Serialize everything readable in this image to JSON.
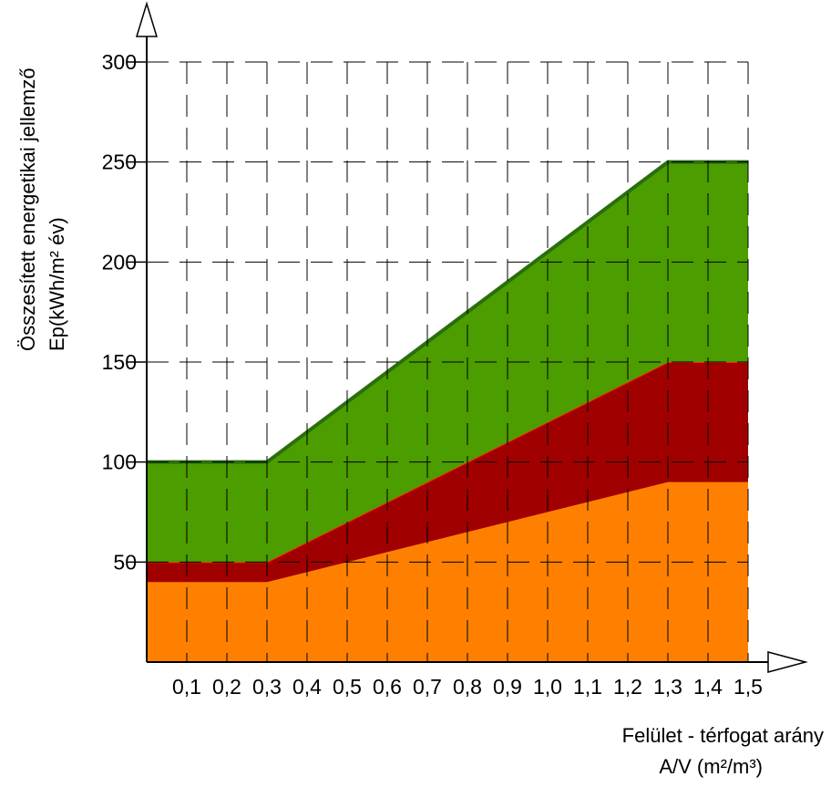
{
  "chart_data": {
    "type": "area",
    "ylabel_lines": [
      "Összesített energetikai jellemző",
      "Ep(kWh/m² év)"
    ],
    "xlabel_lines": [
      "Felület - térfogat arány",
      "A/V (m²/m³)"
    ],
    "x_tick_labels": [
      "0,1",
      "0,2",
      "0,3",
      "0,4",
      "0,5",
      "0,6",
      "0,7",
      "0,8",
      "0,9",
      "1,0",
      "1,1",
      "1,2",
      "1,3",
      "1,4",
      "1,5"
    ],
    "y_tick_labels": [
      "50",
      "100",
      "150",
      "200",
      "250",
      "300"
    ],
    "x_ticks": [
      0.1,
      0.2,
      0.3,
      0.4,
      0.5,
      0.6,
      0.7,
      0.8,
      0.9,
      1.0,
      1.1,
      1.2,
      1.3,
      1.4,
      1.5
    ],
    "y_ticks": [
      50,
      100,
      150,
      200,
      250,
      300
    ],
    "xlim": [
      0,
      1.5
    ],
    "ylim": [
      0,
      300
    ],
    "grid": true,
    "series": [
      {
        "color": "#ff8000",
        "edge": "#ff8000",
        "x": [
          0,
          0.3,
          1.3,
          1.5
        ],
        "lower": [
          0,
          0,
          0,
          0
        ],
        "upper": [
          40,
          40,
          90,
          90
        ]
      },
      {
        "color": "#a00000",
        "edge": "#ff2a00",
        "x": [
          0,
          0.3,
          1.3,
          1.5
        ],
        "lower": [
          40,
          40,
          90,
          90
        ],
        "upper": [
          50,
          50,
          150,
          150
        ]
      },
      {
        "color": "#4c9d00",
        "edge": "#2a6e0e",
        "x": [
          0,
          0.3,
          1.3,
          1.5
        ],
        "lower": [
          50,
          50,
          150,
          150
        ],
        "upper": [
          100,
          100,
          250,
          250
        ]
      }
    ]
  }
}
